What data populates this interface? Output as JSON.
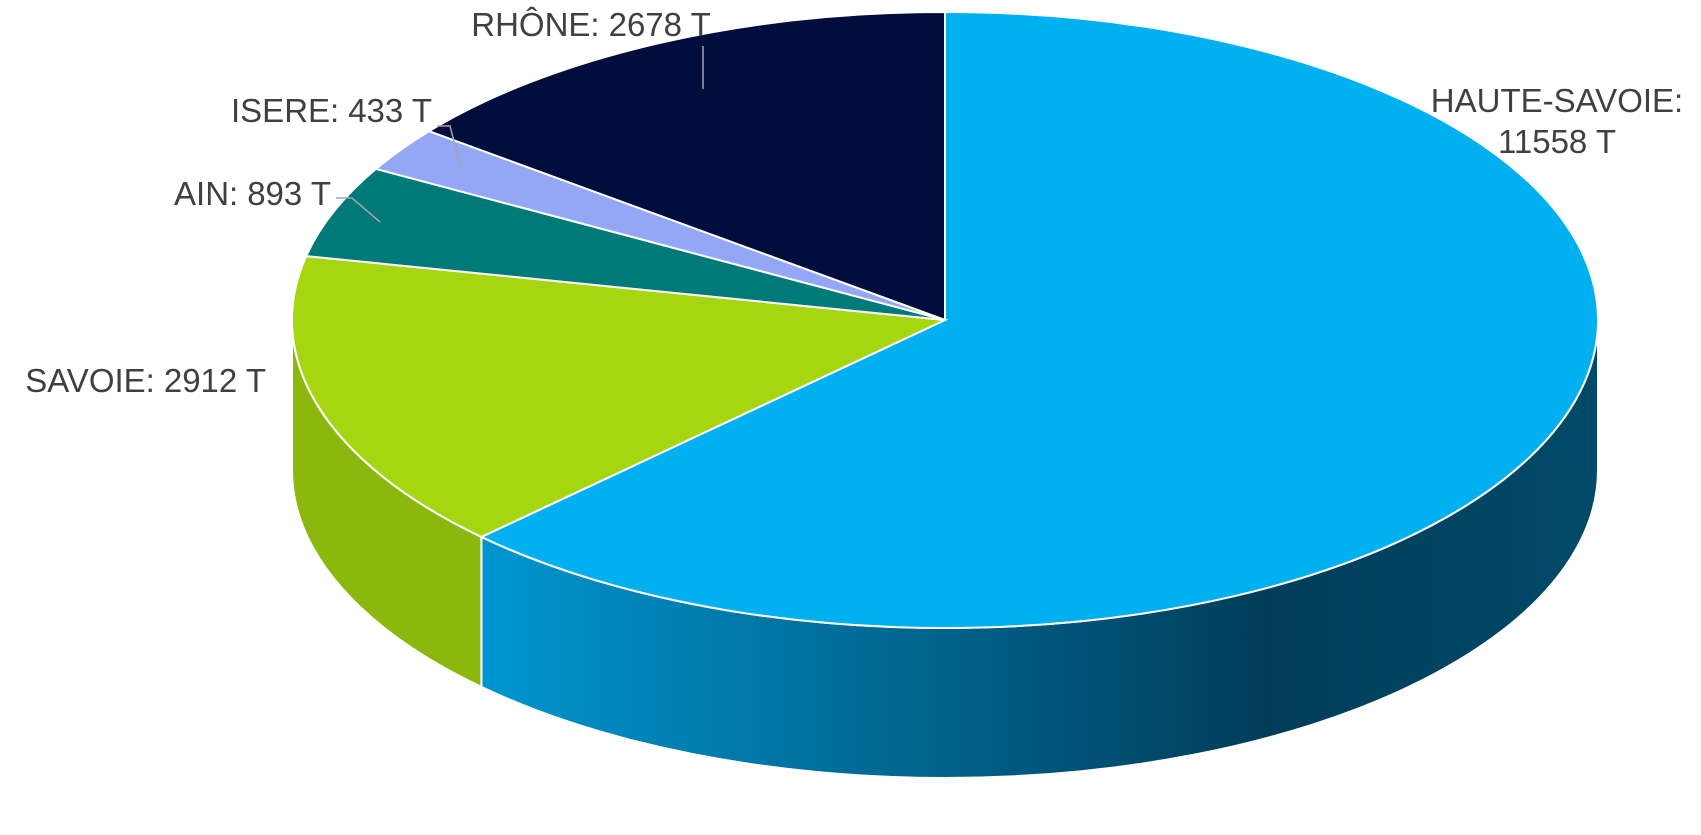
{
  "chart_data": {
    "type": "pie3d",
    "categories": [
      "HAUTE-SAVOIE:",
      "SAVOIE:",
      "AIN:",
      "ISERE:",
      "RHÔNE:"
    ],
    "values": [
      11558,
      2912,
      893,
      433,
      2678
    ],
    "value_labels": [
      "11558 T",
      "2912 T",
      "893 T",
      "433 T",
      "2678 T"
    ],
    "colors": [
      "#00b0f0",
      "#a5d610",
      "#007a78",
      "#94a6f6",
      "#000d3d"
    ]
  }
}
